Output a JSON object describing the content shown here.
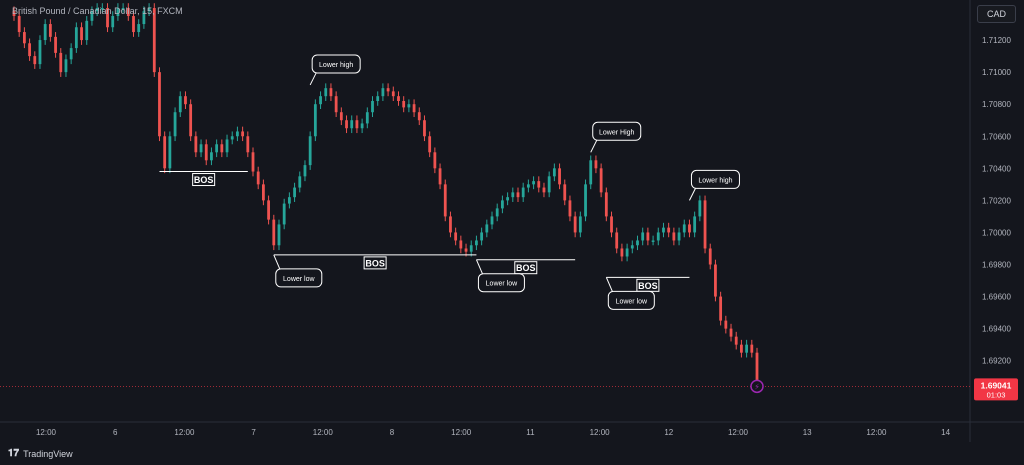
{
  "header": {
    "title": "British Pound / Canadian Dollar, 15, FXCM",
    "currency_button": "CAD"
  },
  "footer": {
    "brand": "TradingView",
    "logo": "tradingview-logo-icon"
  },
  "colors": {
    "background": "#14161d",
    "bull": "#26a69a",
    "bear": "#ef5350",
    "annotation": "#ffffff",
    "price_tag": "#f23645",
    "alert": "#9c27b0"
  },
  "chart_data": {
    "type": "line",
    "title": "British Pound / Canadian Dollar, 15, FXCM",
    "xlabel": "",
    "ylabel": "",
    "x_tick_labels": [
      "12:00",
      "6",
      "12:00",
      "7",
      "12:00",
      "8",
      "12:00",
      "11",
      "12:00",
      "12",
      "12:00",
      "13",
      "12:00",
      "14"
    ],
    "y_tick_labels": [
      "1.71200",
      "1.71000",
      "1.70800",
      "1.70600",
      "1.70400",
      "1.70200",
      "1.70000",
      "1.69800",
      "1.69600",
      "1.69400",
      "1.69200"
    ],
    "ylim": [
      1.6883,
      1.7145
    ],
    "grid": false,
    "series": [
      {
        "values": [
          1.7135,
          1.7125,
          1.7118,
          1.711,
          1.7105,
          1.712,
          1.713,
          1.7122,
          1.7112,
          1.71,
          1.7108,
          1.7115,
          1.7128,
          1.712,
          1.7132,
          1.7138,
          1.714,
          1.714,
          1.7128,
          1.7135,
          1.714,
          1.714,
          1.7135,
          1.7125,
          1.713,
          1.7138,
          1.714,
          1.71,
          1.706,
          1.704,
          1.706,
          1.7075,
          1.7085,
          1.708,
          1.706,
          1.705,
          1.7055,
          1.7045,
          1.705,
          1.7055,
          1.705,
          1.7058,
          1.706,
          1.7063,
          1.706,
          1.705,
          1.7038,
          1.703,
          1.702,
          1.7008,
          1.6992,
          1.7005,
          1.7018,
          1.7022,
          1.7028,
          1.7035,
          1.7042,
          1.706,
          1.708,
          1.7085,
          1.709,
          1.7085,
          1.7075,
          1.707,
          1.7065,
          1.707,
          1.7065,
          1.7068,
          1.7075,
          1.7082,
          1.7085,
          1.709,
          1.7088,
          1.7085,
          1.7082,
          1.7078,
          1.708,
          1.7075,
          1.707,
          1.706,
          1.705,
          1.704,
          1.703,
          1.701,
          1.7,
          1.6995,
          1.699,
          1.6988,
          1.6992,
          1.6995,
          1.7,
          1.7005,
          1.701,
          1.7015,
          1.702,
          1.7022,
          1.7025,
          1.7022,
          1.7028,
          1.703,
          1.7032,
          1.7028,
          1.7025,
          1.7035,
          1.704,
          1.703,
          1.702,
          1.701,
          1.7,
          1.701,
          1.703,
          1.7045,
          1.704,
          1.7025,
          1.701,
          1.7,
          1.699,
          1.6985,
          1.699,
          1.6992,
          1.6995,
          1.7,
          1.6995,
          1.6995,
          1.7,
          1.7003,
          1.7,
          1.6995,
          1.7,
          1.7005,
          1.7,
          1.701,
          1.702,
          1.699,
          1.698,
          1.696,
          1.6945,
          1.694,
          1.6935,
          1.693,
          1.6925,
          1.693,
          1.6925,
          1.6904
        ]
      }
    ],
    "last_price": "1.69041",
    "countdown": "01:03",
    "annotations": [
      {
        "type": "bos",
        "label": "BOS",
        "level": 1.7038
      },
      {
        "type": "bos",
        "label": "BOS",
        "level": 1.6986
      },
      {
        "type": "bos",
        "label": "BOS",
        "level": 1.6983
      },
      {
        "type": "bos",
        "label": "BOS",
        "level": 1.6972
      },
      {
        "type": "swing",
        "label": "Lower high",
        "price": 1.7092
      },
      {
        "type": "swing",
        "label": "Lower low",
        "price": 1.6986
      },
      {
        "type": "swing",
        "label": "Lower low",
        "price": 1.6983
      },
      {
        "type": "swing",
        "label": "Lower High",
        "price": 1.705
      },
      {
        "type": "swing",
        "label": "Lower low",
        "price": 1.6972
      },
      {
        "type": "swing",
        "label": "Lower high",
        "price": 1.702
      }
    ]
  }
}
